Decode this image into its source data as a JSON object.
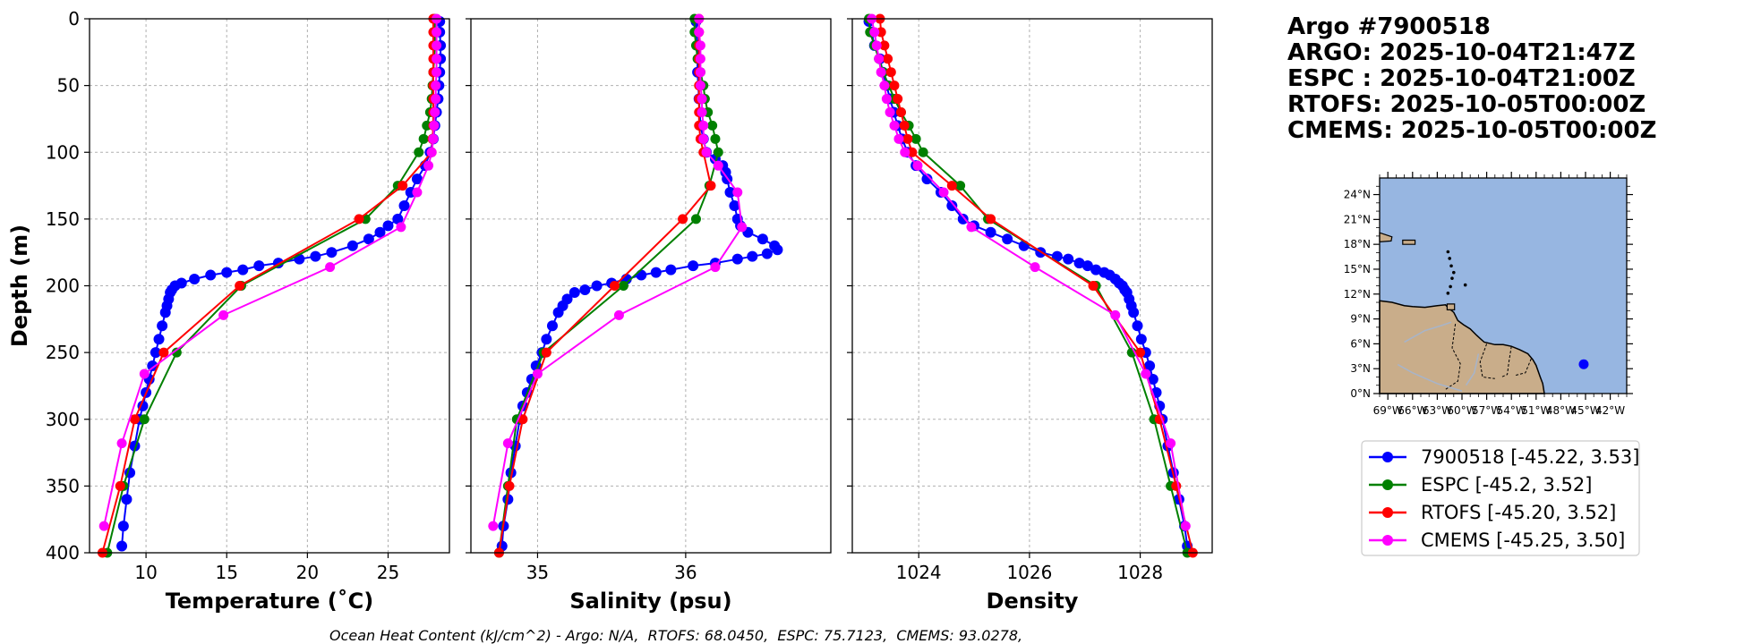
{
  "header": {
    "float_id": "Argo #7900518",
    "argo_time": "ARGO: 2025-10-04T21:47Z",
    "espc_time": "ESPC : 2025-10-04T21:00Z",
    "rtofs_time": "RTOFS: 2025-10-05T00:00Z",
    "cmems_time": "CMEMS: 2025-10-05T00:00Z"
  },
  "footer": {
    "ohc_text": "Ocean Heat Content (kJ/cm^2) - Argo: N/A,  RTOFS: 68.0450,  ESPC: 75.7123,  CMEMS: 93.0278,"
  },
  "colors": {
    "argo": "#0000ff",
    "espc": "#008000",
    "rtofs": "#ff0000",
    "cmems": "#ff00ff",
    "ocean": "#97b6e1",
    "land": "#c9ad8a",
    "grid": "#b0b0b0"
  },
  "legend": [
    {
      "key": "argo",
      "label": "7900518 [-45.22, 3.53]"
    },
    {
      "key": "espc",
      "label": "ESPC [-45.2, 3.52]"
    },
    {
      "key": "rtofs",
      "label": "RTOFS [-45.20, 3.52]"
    },
    {
      "key": "cmems",
      "label": "CMEMS [-45.25, 3.50]"
    }
  ],
  "map": {
    "lon_range": [
      -70,
      -40
    ],
    "lat_range": [
      0,
      26
    ],
    "lon_ticks": [
      -69,
      -66,
      -63,
      -60,
      -57,
      -54,
      -51,
      -48,
      -45,
      -42
    ],
    "lon_tick_labels": [
      "69°W",
      "66°W",
      "63°W",
      "60°W",
      "57°W",
      "54°W",
      "51°W",
      "48°W",
      "45°W",
      "42°W"
    ],
    "lat_ticks": [
      0,
      3,
      6,
      9,
      12,
      15,
      18,
      21,
      24
    ],
    "lat_tick_labels": [
      "0°N",
      "3°N",
      "6°N",
      "9°N",
      "12°N",
      "15°N",
      "18°N",
      "21°N",
      "24°N"
    ],
    "float_position": {
      "lon": -45.22,
      "lat": 3.53
    }
  },
  "chart_data": [
    {
      "type": "line",
      "name": "temperature",
      "xlabel": "Temperature (˚C)",
      "ylabel": "Depth (m)",
      "xlim": [
        6.5,
        28.8
      ],
      "ylim": [
        400,
        0
      ],
      "xticks": [
        10,
        15,
        20,
        25
      ],
      "xtick_labels": [
        "10",
        "15",
        "20",
        "25"
      ],
      "yticks": [
        0,
        50,
        100,
        150,
        200,
        250,
        300,
        350,
        400
      ],
      "ytick_labels": [
        "0",
        "50",
        "100",
        "150",
        "200",
        "250",
        "300",
        "350",
        "400"
      ],
      "grid": true,
      "series": [
        {
          "name": "7900518",
          "key": "argo",
          "depth": [
            2,
            10,
            20,
            30,
            40,
            50,
            60,
            70,
            80,
            90,
            100,
            110,
            120,
            130,
            140,
            150,
            155,
            160,
            165,
            170,
            175,
            178,
            180,
            183,
            185,
            188,
            190,
            192,
            195,
            198,
            200,
            203,
            205,
            210,
            215,
            220,
            230,
            240,
            250,
            260,
            270,
            280,
            290,
            300,
            320,
            340,
            360,
            380,
            395
          ],
          "values": [
            28.2,
            28.2,
            28.25,
            28.25,
            28.2,
            28.15,
            28.1,
            28.0,
            27.9,
            27.8,
            27.6,
            27.3,
            26.8,
            26.4,
            26.0,
            25.6,
            25.0,
            24.5,
            23.8,
            22.8,
            21.5,
            20.5,
            19.5,
            18.2,
            17.0,
            16.0,
            15.0,
            14.0,
            13.0,
            12.2,
            11.8,
            11.6,
            11.5,
            11.4,
            11.3,
            11.2,
            11.0,
            10.8,
            10.6,
            10.4,
            10.2,
            10.0,
            9.8,
            9.6,
            9.3,
            9.0,
            8.8,
            8.6,
            8.5
          ]
        },
        {
          "name": "ESPC",
          "key": "espc",
          "depth": [
            0,
            10,
            20,
            30,
            40,
            50,
            60,
            70,
            80,
            90,
            100,
            125,
            150,
            200,
            250,
            300,
            350,
            400
          ],
          "values": [
            27.9,
            27.9,
            27.9,
            27.85,
            27.8,
            27.75,
            27.7,
            27.6,
            27.4,
            27.2,
            26.9,
            25.6,
            23.6,
            15.9,
            11.9,
            9.9,
            8.6,
            7.6
          ]
        },
        {
          "name": "RTOFS",
          "key": "rtofs",
          "depth": [
            0,
            10,
            20,
            30,
            40,
            50,
            60,
            70,
            80,
            90,
            100,
            125,
            150,
            200,
            250,
            300,
            350,
            400
          ],
          "values": [
            27.8,
            27.8,
            27.8,
            27.8,
            27.8,
            27.8,
            27.8,
            27.8,
            27.8,
            27.75,
            27.7,
            25.9,
            23.2,
            15.8,
            11.1,
            9.3,
            8.4,
            7.3
          ]
        },
        {
          "name": "CMEMS",
          "key": "cmems",
          "depth": [
            0,
            10,
            20,
            30,
            40,
            50,
            60,
            70,
            80,
            90,
            100,
            110,
            130,
            156,
            186,
            222,
            266,
            318,
            380
          ],
          "values": [
            28.0,
            28.0,
            28.0,
            28.0,
            28.0,
            27.95,
            27.95,
            27.9,
            27.85,
            27.8,
            27.7,
            27.5,
            26.8,
            25.8,
            21.4,
            14.8,
            9.9,
            8.5,
            7.4
          ]
        }
      ]
    },
    {
      "type": "line",
      "name": "salinity",
      "xlabel": "Salinity (psu)",
      "ylabel": "",
      "xlim": [
        34.55,
        36.98
      ],
      "ylim": [
        400,
        0
      ],
      "xticks": [
        35,
        36
      ],
      "xtick_labels": [
        "35",
        "36"
      ],
      "yticks": [
        0,
        50,
        100,
        150,
        200,
        250,
        300,
        350,
        400
      ],
      "grid": true,
      "series": [
        {
          "name": "7900518",
          "key": "argo",
          "depth": [
            2,
            20,
            40,
            60,
            80,
            90,
            100,
            105,
            110,
            115,
            120,
            130,
            140,
            150,
            155,
            160,
            165,
            170,
            173,
            176,
            178,
            180,
            183,
            185,
            188,
            190,
            192,
            195,
            198,
            200,
            203,
            205,
            210,
            215,
            220,
            230,
            240,
            250,
            260,
            270,
            280,
            290,
            300,
            320,
            340,
            360,
            380,
            395
          ],
          "values": [
            36.07,
            36.08,
            36.08,
            36.09,
            36.1,
            36.12,
            36.14,
            36.2,
            36.25,
            36.27,
            36.28,
            36.3,
            36.33,
            36.35,
            36.37,
            36.42,
            36.52,
            36.6,
            36.62,
            36.55,
            36.45,
            36.35,
            36.2,
            36.05,
            35.9,
            35.8,
            35.7,
            35.6,
            35.5,
            35.4,
            35.32,
            35.25,
            35.2,
            35.17,
            35.14,
            35.1,
            35.06,
            35.03,
            34.99,
            34.96,
            34.93,
            34.9,
            34.88,
            34.85,
            34.82,
            34.8,
            34.77,
            34.76
          ]
        },
        {
          "name": "ESPC",
          "key": "espc",
          "depth": [
            0,
            10,
            20,
            30,
            40,
            50,
            60,
            70,
            80,
            90,
            100,
            125,
            150,
            200,
            250,
            300,
            350,
            400
          ],
          "values": [
            36.06,
            36.06,
            36.07,
            36.08,
            36.1,
            36.12,
            36.13,
            36.15,
            36.18,
            36.2,
            36.22,
            36.16,
            36.07,
            35.58,
            35.04,
            34.86,
            34.8,
            34.74
          ]
        },
        {
          "name": "RTOFS",
          "key": "rtofs",
          "depth": [
            0,
            10,
            20,
            30,
            40,
            50,
            60,
            70,
            80,
            90,
            100,
            125,
            150,
            200,
            250,
            300,
            350,
            400
          ],
          "values": [
            36.09,
            36.09,
            36.09,
            36.09,
            36.09,
            36.09,
            36.09,
            36.09,
            36.09,
            36.1,
            36.12,
            36.17,
            35.98,
            35.52,
            35.06,
            34.9,
            34.81,
            34.74
          ]
        },
        {
          "name": "CMEMS",
          "key": "cmems",
          "depth": [
            0,
            10,
            20,
            30,
            40,
            50,
            60,
            70,
            80,
            90,
            100,
            110,
            130,
            156,
            186,
            222,
            266,
            318,
            380
          ],
          "values": [
            36.09,
            36.09,
            36.1,
            36.1,
            36.1,
            36.1,
            36.11,
            36.11,
            36.12,
            36.12,
            36.14,
            36.22,
            36.35,
            36.38,
            36.2,
            35.55,
            35.0,
            34.8,
            34.7
          ]
        }
      ]
    },
    {
      "type": "line",
      "name": "density",
      "xlabel": "Density",
      "ylabel": "",
      "xlim": [
        1022.8,
        1029.3
      ],
      "ylim": [
        400,
        0
      ],
      "xticks": [
        1024,
        1026,
        1028
      ],
      "xtick_labels": [
        "1024",
        "1026",
        "1028"
      ],
      "yticks": [
        0,
        50,
        100,
        150,
        200,
        250,
        300,
        350,
        400
      ],
      "grid": true,
      "series": [
        {
          "name": "7900518",
          "key": "argo",
          "depth": [
            2,
            10,
            20,
            30,
            40,
            50,
            60,
            70,
            80,
            90,
            100,
            110,
            120,
            130,
            140,
            150,
            155,
            160,
            165,
            170,
            175,
            178,
            180,
            183,
            185,
            188,
            190,
            192,
            195,
            198,
            200,
            203,
            205,
            210,
            215,
            220,
            230,
            240,
            250,
            260,
            270,
            280,
            290,
            300,
            320,
            340,
            360,
            380,
            395
          ],
          "values": [
            1023.1,
            1023.15,
            1023.2,
            1023.3,
            1023.35,
            1023.42,
            1023.48,
            1023.55,
            1023.62,
            1023.7,
            1023.8,
            1023.95,
            1024.15,
            1024.4,
            1024.6,
            1024.8,
            1025.0,
            1025.3,
            1025.6,
            1025.9,
            1026.2,
            1026.5,
            1026.7,
            1026.9,
            1027.05,
            1027.2,
            1027.35,
            1027.45,
            1027.55,
            1027.62,
            1027.68,
            1027.72,
            1027.76,
            1027.8,
            1027.84,
            1027.88,
            1027.95,
            1028.02,
            1028.1,
            1028.17,
            1028.23,
            1028.29,
            1028.35,
            1028.4,
            1028.5,
            1028.6,
            1028.7,
            1028.8,
            1028.85
          ]
        },
        {
          "name": "ESPC",
          "key": "espc",
          "depth": [
            0,
            10,
            20,
            30,
            40,
            50,
            60,
            70,
            80,
            90,
            100,
            125,
            150,
            200,
            250,
            300,
            350,
            400
          ],
          "values": [
            1023.1,
            1023.12,
            1023.2,
            1023.28,
            1023.36,
            1023.46,
            1023.56,
            1023.68,
            1023.82,
            1023.95,
            1024.08,
            1024.75,
            1025.25,
            1027.2,
            1027.85,
            1028.25,
            1028.55,
            1028.85
          ]
        },
        {
          "name": "RTOFS",
          "key": "rtofs",
          "depth": [
            0,
            10,
            20,
            30,
            40,
            50,
            60,
            70,
            80,
            90,
            100,
            125,
            150,
            200,
            250,
            300,
            350,
            400
          ],
          "values": [
            1023.3,
            1023.32,
            1023.38,
            1023.44,
            1023.5,
            1023.56,
            1023.62,
            1023.68,
            1023.74,
            1023.8,
            1023.88,
            1024.6,
            1025.3,
            1027.15,
            1028.0,
            1028.35,
            1028.65,
            1028.95
          ]
        },
        {
          "name": "CMEMS",
          "key": "cmems",
          "depth": [
            0,
            10,
            20,
            30,
            40,
            50,
            60,
            70,
            80,
            90,
            100,
            110,
            130,
            156,
            186,
            222,
            266,
            318,
            380
          ],
          "values": [
            1023.15,
            1023.2,
            1023.24,
            1023.28,
            1023.32,
            1023.38,
            1023.42,
            1023.48,
            1023.56,
            1023.64,
            1023.75,
            1023.98,
            1024.45,
            1024.95,
            1026.1,
            1027.55,
            1028.1,
            1028.55,
            1028.82
          ]
        }
      ]
    }
  ]
}
